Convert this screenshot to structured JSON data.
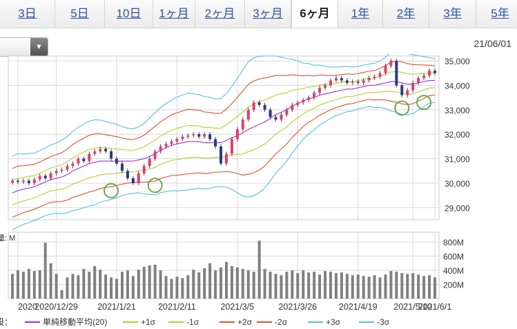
{
  "tabs": [
    {
      "label": "3日",
      "active": false
    },
    {
      "label": "5日",
      "active": false
    },
    {
      "label": "10日",
      "active": false
    },
    {
      "label": "1ヶ月",
      "active": false
    },
    {
      "label": "2ヶ月",
      "active": false
    },
    {
      "label": "3ヶ月",
      "active": false
    },
    {
      "label": "6ヶ月",
      "active": true
    },
    {
      "label": "1年",
      "active": false
    },
    {
      "label": "2年",
      "active": false
    },
    {
      "label": "3年",
      "active": false
    },
    {
      "label": "5年",
      "active": false
    }
  ],
  "selector": {
    "value": "",
    "arrow": "▼"
  },
  "as_of_date": "21/06/01",
  "volume_unit_label": "量: M",
  "legend_prefix": "設：",
  "legend": [
    {
      "label": "単純移動平均(20)",
      "color": "#9b30d9"
    },
    {
      "label": "+1σ",
      "color": "#b8cc30"
    },
    {
      "label": "-1σ",
      "color": "#b8cc30"
    },
    {
      "label": "+2σ",
      "color": "#e05030"
    },
    {
      "label": "-2σ",
      "color": "#e05030"
    },
    {
      "label": "+3σ",
      "color": "#55c0e0"
    },
    {
      "label": "-3σ",
      "color": "#55c0e0"
    }
  ],
  "colors": {
    "up": "#e0406a",
    "down": "#2a3a80",
    "volume": "#808080",
    "marker": "#6aa84f",
    "grid": "#d8d8d8"
  },
  "chart_data": [
    {
      "type": "candlestick",
      "x_tick_labels": [
        "2020/12/29",
        "2021/1/21",
        "2021/2/11",
        "2021/3/5",
        "2021/3/26",
        "2021/4/19",
        "2021/5/10",
        "2021/6/1"
      ],
      "y_tick_labels": [
        "35,000",
        "34,000",
        "33,000",
        "32,000",
        "31,000",
        "30,000",
        "29,000"
      ],
      "ylim": [
        28500,
        35200
      ],
      "close": [
        30100,
        30050,
        30100,
        30000,
        30150,
        30300,
        30200,
        30400,
        30500,
        30550,
        30700,
        30800,
        31000,
        30900,
        31200,
        31300,
        31400,
        31300,
        31000,
        30800,
        30500,
        30200,
        30000,
        30400,
        30700,
        31000,
        31300,
        31500,
        31600,
        31700,
        31800,
        31900,
        31950,
        32000,
        31900,
        32000,
        31800,
        31500,
        30800,
        31200,
        31800,
        32200,
        32600,
        33000,
        33300,
        33200,
        33000,
        32700,
        32600,
        32800,
        33000,
        33200,
        33300,
        33400,
        33500,
        33700,
        33900,
        34000,
        34200,
        34300,
        34200,
        34100,
        34150,
        34100,
        34200,
        34300,
        34350,
        34500,
        34800,
        35000,
        34000,
        33600,
        33800,
        34100,
        34300,
        34400,
        34600,
        34500
      ],
      "sma20": [
        29600,
        29700,
        29750,
        29800,
        29850,
        29950,
        30050,
        30150,
        30200,
        30250,
        30350,
        30500,
        30600,
        30700,
        30800,
        30850,
        30900,
        30900,
        30900,
        30900,
        30900,
        30900,
        30900,
        30950,
        31000,
        31100,
        31200,
        31350,
        31450,
        31550,
        31600,
        31650,
        31700,
        31700,
        31700,
        31650,
        31650,
        31650,
        31650,
        31750,
        31850,
        31950,
        32050,
        32200,
        32300,
        32400,
        32500,
        32650,
        32800,
        32900,
        33000,
        33150,
        33250,
        33350,
        33450,
        33500,
        33600,
        33650,
        33700,
        33750,
        33800,
        33850,
        33850,
        33900,
        33950,
        34000,
        34000,
        34050,
        34100,
        34150,
        34150,
        34100,
        34050,
        34050,
        34100,
        34150,
        34200,
        34200
      ],
      "sigma": [
        500,
        500,
        480,
        470,
        460,
        460,
        460,
        470,
        480,
        500,
        520,
        540,
        560,
        570,
        580,
        580,
        560,
        540,
        520,
        500,
        470,
        450,
        440,
        450,
        480,
        520,
        560,
        580,
        600,
        620,
        640,
        650,
        660,
        650,
        640,
        630,
        620,
        600,
        600,
        640,
        700,
        780,
        860,
        920,
        940,
        930,
        900,
        850,
        800,
        750,
        700,
        640,
        580,
        520,
        480,
        440,
        410,
        380,
        350,
        330,
        320,
        310,
        300,
        290,
        290,
        290,
        300,
        320,
        350,
        400,
        420,
        430,
        420,
        400,
        370,
        340,
        310,
        300
      ],
      "volume_ylim": [
        0,
        900
      ],
      "volume_tick_labels": [
        "800M",
        "600M",
        "400M",
        "200M"
      ],
      "volume": [
        350,
        400,
        380,
        420,
        390,
        400,
        790,
        500,
        350,
        120,
        300,
        350,
        330,
        420,
        380,
        460,
        410,
        340,
        300,
        280,
        380,
        400,
        320,
        410,
        450,
        470,
        480,
        400,
        320,
        280,
        310,
        290,
        330,
        410,
        370,
        430,
        500,
        400,
        440,
        520,
        460,
        440,
        420,
        400,
        380,
        820,
        420,
        380,
        350,
        330,
        380,
        400,
        360,
        400,
        370,
        380,
        340,
        390,
        380,
        360,
        370,
        350,
        330,
        340,
        320,
        310,
        330,
        300,
        340,
        390,
        380,
        360,
        350,
        360,
        340,
        320,
        330,
        300
      ],
      "marker_circles": [
        18,
        26,
        71,
        75
      ]
    }
  ]
}
